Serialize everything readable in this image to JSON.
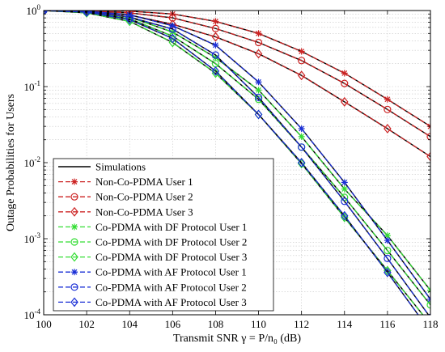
{
  "chart_data": {
    "type": "line",
    "title": "",
    "xlabel": "Transmit SNR γ = P/n₀ (dB)",
    "ylabel": "Outage Probabilities for Users",
    "xlim": [
      100,
      118
    ],
    "ylim": [
      0.0001,
      1
    ],
    "yscale": "log",
    "grid": true,
    "legend_position": "bottom-left",
    "x_ticks": [
      "100",
      "102",
      "104",
      "106",
      "108",
      "110",
      "112",
      "114",
      "116",
      "118"
    ],
    "y_ticks": [
      {
        "base": "10",
        "exp": "0"
      },
      {
        "base": "10",
        "exp": "-1"
      },
      {
        "base": "10",
        "exp": "-2"
      },
      {
        "base": "10",
        "exp": "-3"
      },
      {
        "base": "10",
        "exp": "-4"
      }
    ],
    "simulations_label": "Simulations",
    "x": [
      100,
      102,
      104,
      106,
      108,
      110,
      112,
      114,
      116,
      118
    ],
    "series": [
      {
        "name": "Non-Co-PDMA User 1",
        "color": "#cc2222",
        "marker": "star",
        "values": [
          1.0,
          1.0,
          0.98,
          0.9,
          0.72,
          0.5,
          0.29,
          0.15,
          0.068,
          0.03
        ]
      },
      {
        "name": "Non-Co-PDMA User 2",
        "color": "#cc2222",
        "marker": "circle",
        "values": [
          1.0,
          0.99,
          0.93,
          0.8,
          0.58,
          0.38,
          0.22,
          0.11,
          0.05,
          0.022
        ]
      },
      {
        "name": "Non-Co-PDMA User 3",
        "color": "#cc2222",
        "marker": "diamond",
        "values": [
          1.0,
          0.97,
          0.87,
          0.66,
          0.45,
          0.27,
          0.14,
          0.063,
          0.028,
          0.012
        ]
      },
      {
        "name": "Co-PDMA with DF Protocol User 1",
        "color": "#33dd33",
        "marker": "star",
        "values": [
          1.0,
          0.96,
          0.82,
          0.52,
          0.24,
          0.09,
          0.022,
          0.0045,
          0.0011,
          0.00021
        ]
      },
      {
        "name": "Co-PDMA with DF Protocol User 2",
        "color": "#33dd33",
        "marker": "circle",
        "values": [
          1.0,
          0.95,
          0.78,
          0.46,
          0.2,
          0.068,
          0.016,
          0.0035,
          0.0007,
          0.000135
        ]
      },
      {
        "name": "Co-PDMA with DF Protocol User 3",
        "color": "#33dd33",
        "marker": "diamond",
        "values": [
          1.0,
          0.93,
          0.72,
          0.38,
          0.15,
          0.043,
          0.0097,
          0.0019,
          0.00038,
          7.5e-05
        ]
      },
      {
        "name": "Co-PDMA with AF Protocol User 1",
        "color": "#1a2fd6",
        "marker": "star",
        "values": [
          1.0,
          0.98,
          0.88,
          0.63,
          0.35,
          0.115,
          0.028,
          0.0055,
          0.00095,
          0.00016
        ]
      },
      {
        "name": "Co-PDMA with AF Protocol User 2",
        "color": "#1a2fd6",
        "marker": "circle",
        "values": [
          1.0,
          0.97,
          0.82,
          0.57,
          0.26,
          0.072,
          0.016,
          0.0031,
          0.00055,
          9.2e-05
        ]
      },
      {
        "name": "Co-PDMA with AF Protocol User 3",
        "color": "#1a2fd6",
        "marker": "diamond",
        "values": [
          1.0,
          0.95,
          0.76,
          0.43,
          0.16,
          0.043,
          0.01,
          0.002,
          0.00036,
          6e-05
        ]
      }
    ]
  }
}
